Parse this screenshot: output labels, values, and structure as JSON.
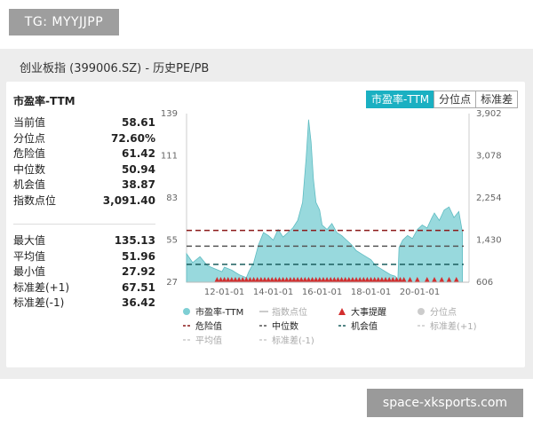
{
  "watermark_top": "TG: MYYJJPP",
  "watermark_bottom": "space-xksports.com",
  "page_title": "创业板指 (399006.SZ) - 历史PE/PB",
  "panel_title": "市盈率-TTM",
  "tabs": [
    {
      "label": "市盈率-TTM",
      "active": true
    },
    {
      "label": "分位点",
      "active": false
    },
    {
      "label": "标准差",
      "active": false
    }
  ],
  "stats_top": [
    {
      "label": "当前值",
      "value": "58.61"
    },
    {
      "label": "分位点",
      "value": "72.60%"
    },
    {
      "label": "危险值",
      "value": "61.42"
    },
    {
      "label": "中位数",
      "value": "50.94"
    },
    {
      "label": "机会值",
      "value": "38.87"
    },
    {
      "label": "指数点位",
      "value": "3,091.40"
    }
  ],
  "stats_bottom": [
    {
      "label": "最大值",
      "value": "135.13"
    },
    {
      "label": "平均值",
      "value": "51.96"
    },
    {
      "label": "最小值",
      "value": "27.92"
    },
    {
      "label": "标准差(+1)",
      "value": "67.51"
    },
    {
      "label": "标准差(-1)",
      "value": "36.42"
    }
  ],
  "legend": [
    {
      "label": "市盈率-TTM",
      "marker": "dot",
      "color": "#7ecfd4",
      "faded": false
    },
    {
      "label": "指数点位",
      "marker": "line",
      "color": "#cccccc",
      "faded": true
    },
    {
      "label": "大事提醒",
      "marker": "triangle",
      "color": "#d32f2f",
      "faded": false
    },
    {
      "label": "分位点",
      "marker": "dot",
      "color": "#cccccc",
      "faded": true
    },
    {
      "label": "危险值",
      "marker": "dash",
      "color": "#8b1a1a",
      "faded": false
    },
    {
      "label": "中位数",
      "marker": "dash",
      "color": "#555555",
      "faded": false
    },
    {
      "label": "机会值",
      "marker": "dash",
      "color": "#1b5e5e",
      "faded": false
    },
    {
      "label": "标准差(+1)",
      "marker": "dash",
      "color": "#cccccc",
      "faded": true
    },
    {
      "label": "平均值",
      "marker": "dash",
      "color": "#cccccc",
      "faded": true
    },
    {
      "label": "标准差(-1)",
      "marker": "dash",
      "color": "#cccccc",
      "faded": true
    }
  ],
  "chart_data": {
    "type": "area",
    "series": [
      {
        "name": "市盈率-TTM",
        "color": "#7ecfd4",
        "x": [
          2010.45,
          2010.7,
          2011.0,
          2011.3,
          2011.6,
          2011.9,
          2012.0,
          2012.3,
          2012.6,
          2012.9,
          2013.0,
          2013.2,
          2013.4,
          2013.6,
          2013.8,
          2014.0,
          2014.2,
          2014.4,
          2014.6,
          2014.8,
          2015.0,
          2015.2,
          2015.35,
          2015.45,
          2015.55,
          2015.65,
          2015.75,
          2015.9,
          2016.0,
          2016.2,
          2016.4,
          2016.6,
          2016.8,
          2017.0,
          2017.2,
          2017.4,
          2017.6,
          2017.8,
          2018.0,
          2018.2,
          2018.4,
          2018.6,
          2018.8,
          2019.0,
          2019.1,
          2019.15,
          2019.3,
          2019.5,
          2019.7,
          2019.9,
          2020.1,
          2020.3,
          2020.5,
          2020.6,
          2020.8,
          2021.0,
          2021.2,
          2021.4,
          2021.6,
          2021.75
        ],
        "values": [
          46,
          40,
          44,
          38,
          36,
          34,
          37,
          35,
          32,
          30,
          34,
          40,
          52,
          60,
          58,
          55,
          62,
          57,
          60,
          63,
          68,
          80,
          110,
          135,
          120,
          95,
          80,
          75,
          65,
          62,
          66,
          60,
          58,
          55,
          52,
          48,
          46,
          44,
          42,
          38,
          36,
          34,
          32,
          31,
          28,
          50,
          55,
          58,
          56,
          62,
          65,
          63,
          70,
          73,
          68,
          75,
          77,
          70,
          74,
          60
        ]
      }
    ],
    "reference_lines": [
      {
        "name": "危险值",
        "value": 61.42
      },
      {
        "name": "中位数",
        "value": 50.94
      },
      {
        "name": "机会值",
        "value": 38.87
      }
    ],
    "event_markers_x": [
      2011.7,
      2011.85,
      2012.0,
      2012.15,
      2012.3,
      2012.45,
      2012.6,
      2012.75,
      2012.9,
      2013.05,
      2013.2,
      2013.35,
      2013.5,
      2013.65,
      2013.8,
      2013.95,
      2014.1,
      2014.25,
      2014.4,
      2014.55,
      2014.7,
      2014.85,
      2015.0,
      2015.15,
      2015.3,
      2015.45,
      2015.6,
      2015.75,
      2015.9,
      2016.05,
      2016.2,
      2016.35,
      2016.5,
      2016.65,
      2016.8,
      2016.95,
      2017.1,
      2017.25,
      2017.4,
      2017.55,
      2017.7,
      2017.85,
      2018.0,
      2018.15,
      2018.3,
      2018.45,
      2018.6,
      2018.75,
      2018.9,
      2019.05,
      2019.2,
      2019.35,
      2019.6,
      2019.9,
      2020.3,
      2020.6,
      2020.9,
      2021.2,
      2021.5
    ],
    "x_ticks": [
      {
        "value": 2012.0,
        "label": "12-01-01"
      },
      {
        "value": 2014.0,
        "label": "14-01-01"
      },
      {
        "value": 2016.0,
        "label": "16-01-01"
      },
      {
        "value": 2018.0,
        "label": "18-01-01"
      },
      {
        "value": 2020.0,
        "label": "20-01-01"
      }
    ],
    "xlim": [
      2010.45,
      2021.8
    ],
    "y_left_ticks": [
      "139",
      "111",
      "83",
      "55",
      "27"
    ],
    "ylim_left": [
      27,
      139
    ],
    "y_right_ticks": [
      "3,902",
      "3,078",
      "2,254",
      "1,430",
      "606"
    ],
    "ylim_right": [
      606,
      3902
    ],
    "grid": false
  }
}
